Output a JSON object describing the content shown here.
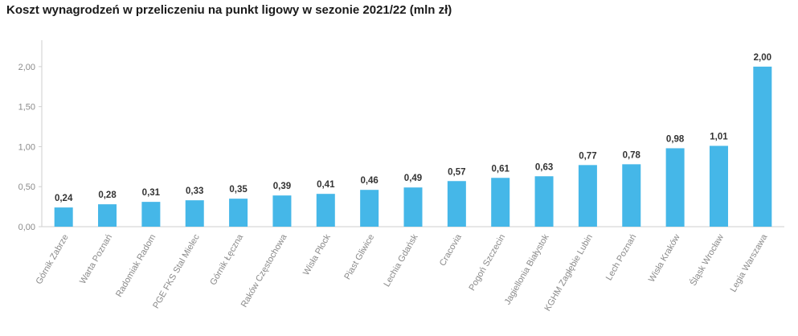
{
  "chart_data": {
    "type": "bar",
    "title": "Koszt wynagrodzeń w przeliczeniu na punkt ligowy w sezonie 2021/22 (mln zł)",
    "xlabel": "",
    "ylabel": "",
    "ylim": [
      0,
      2.25
    ],
    "yticks": [
      "0,00",
      "0,50",
      "1,00",
      "1,50",
      "2,00"
    ],
    "ytick_values": [
      0,
      0.5,
      1.0,
      1.5,
      2.0
    ],
    "grid": false,
    "bar_color": "#45b7e8",
    "categories": [
      "Górnik Zabrze",
      "Warta Poznań",
      "Radomiak Radom",
      "PGE FKS Stal Mielec",
      "Górnik Łęczna",
      "Raków Częstochowa",
      "Wisła Płock",
      "Piast Gliwice",
      "Lechia Gdańsk",
      "Cracovia",
      "Pogoń Szczecin",
      "Jagiellonia Białystok",
      "KGHM Zagłębie Lubin",
      "Lech Poznań",
      "Wisła Kraków",
      "Śląsk Wrocław",
      "Legia Warszawa"
    ],
    "values": [
      0.24,
      0.28,
      0.31,
      0.33,
      0.35,
      0.39,
      0.41,
      0.46,
      0.49,
      0.57,
      0.61,
      0.63,
      0.77,
      0.78,
      0.98,
      1.01,
      2.0
    ],
    "value_labels": [
      "0,24",
      "0,28",
      "0,31",
      "0,33",
      "0,35",
      "0,39",
      "0,41",
      "0,46",
      "0,49",
      "0,57",
      "0,61",
      "0,63",
      "0,77",
      "0,78",
      "0,98",
      "1,01",
      "2,00"
    ]
  }
}
